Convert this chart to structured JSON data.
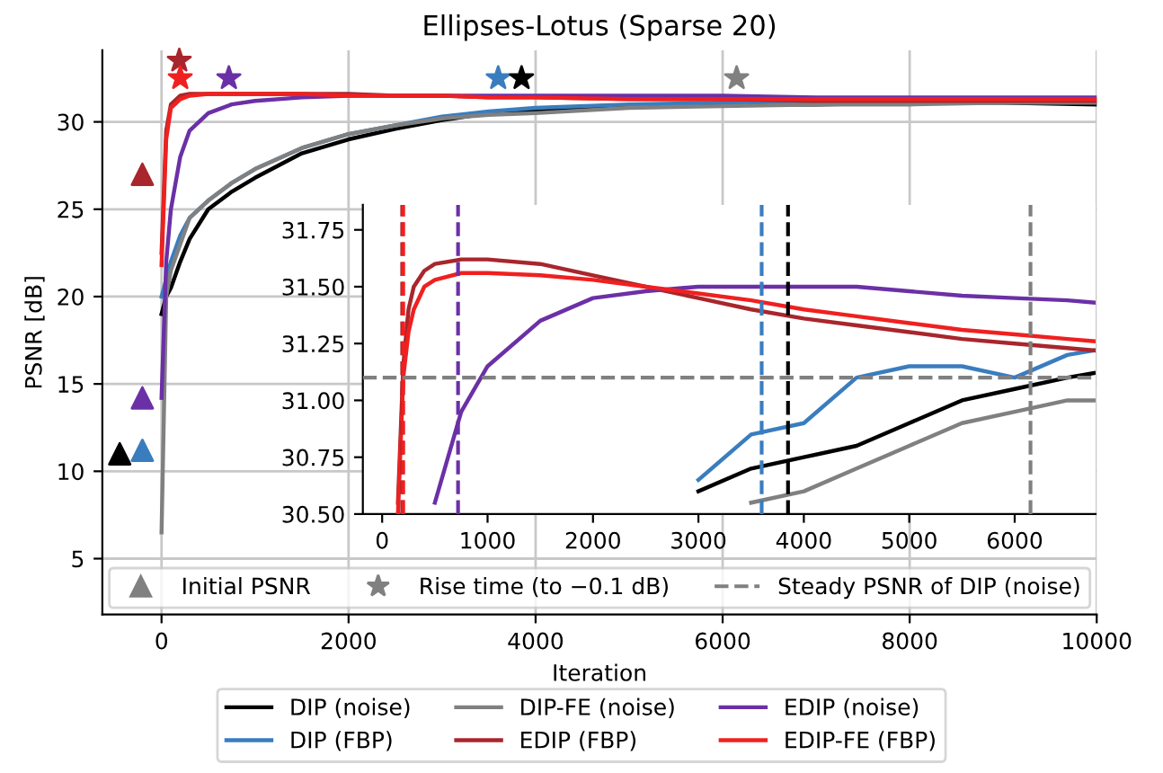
{
  "chart_data": [
    {
      "type": "line",
      "title": "Ellipses-Lotus (Sparse 20)",
      "xlabel": "Iteration",
      "ylabel": "PSNR [dB]",
      "xlim": [
        -633,
        10000
      ],
      "ylim": [
        1.8,
        34.1
      ],
      "xticks": [
        0,
        2000,
        4000,
        6000,
        8000,
        10000
      ],
      "yticks": [
        5,
        10,
        15,
        20,
        25,
        30
      ],
      "grid": true,
      "legend": "bottom",
      "annotations": [
        "Initial PSNR",
        "Rise time (to −0.1 dB)"
      ],
      "x": [
        0,
        50,
        100,
        200,
        300,
        500,
        750,
        1000,
        1500,
        2000,
        2500,
        3000,
        3500,
        4000,
        5000,
        6000,
        7000,
        8000,
        9000,
        10000
      ],
      "series": [
        {
          "name": "DIP (noise)",
          "color": "#000000",
          "values": [
            19,
            20,
            20.5,
            22,
            23.3,
            25,
            26,
            26.8,
            28.2,
            29,
            29.6,
            30.1,
            30.5,
            30.6,
            30.9,
            31,
            31,
            31.1,
            31.1,
            31
          ]
        },
        {
          "name": "DIP (FBP)",
          "color": "#3a7dbf",
          "values": [
            20,
            21,
            22,
            23.5,
            24.5,
            25.5,
            26.5,
            27.3,
            28.5,
            29.3,
            29.8,
            30.3,
            30.6,
            30.8,
            31,
            31.1,
            31.2,
            null,
            null,
            null
          ]
        },
        {
          "name": "DIP-FE (noise)",
          "color": "#808080",
          "values": [
            6.5,
            20,
            21.5,
            23,
            24.5,
            25.5,
            26.5,
            27.3,
            28.5,
            29.3,
            29.8,
            30.2,
            30.4,
            30.5,
            30.8,
            30.9,
            31,
            31,
            31.1,
            31.1
          ]
        },
        {
          "name": "EDIP (FBP)",
          "color": "#a8262c",
          "values": [
            22.5,
            29.5,
            31,
            31.5,
            31.6,
            31.6,
            31.6,
            31.6,
            31.6,
            31.6,
            31.5,
            31.5,
            31.4,
            31.4,
            31.3,
            31.3,
            31.2,
            31.2,
            31.2,
            31.2
          ]
        },
        {
          "name": "EDIP (noise)",
          "color": "#6b30a6",
          "values": [
            14.2,
            22,
            25,
            28,
            29.5,
            30.5,
            31,
            31.2,
            31.4,
            31.5,
            31.5,
            31.5,
            31.5,
            31.5,
            31.5,
            31.5,
            31.4,
            31.4,
            31.4,
            31.4
          ]
        },
        {
          "name": "EDIP-FE (FBP)",
          "color": "#f02020",
          "values": [
            21.8,
            29,
            30.8,
            31.3,
            31.5,
            31.6,
            31.6,
            31.6,
            31.6,
            31.5,
            31.5,
            31.5,
            31.4,
            31.4,
            31.3,
            31.3,
            31.3,
            31.3,
            31.3,
            31.3
          ]
        },
        {
          "type": "scatter",
          "marker": "triangle",
          "x": [
            -447,
            -205,
            -205,
            -205
          ],
          "values": [
            11,
            11.2,
            14.2,
            27
          ],
          "colors": [
            "#000000",
            "#3a7dbf",
            "#6b30a6",
            "#a8262c"
          ]
        },
        {
          "type": "scatter",
          "marker": "star",
          "x": [
            190,
            200,
            720,
            3600,
            3850,
            6150
          ],
          "values": [
            33.5,
            32.5,
            32.5,
            32.5,
            32.5,
            32.5
          ],
          "colors": [
            "#a8262c",
            "#f02020",
            "#6b30a6",
            "#3a7dbf",
            "#000000",
            "#808080"
          ]
        }
      ]
    },
    {
      "type": "line",
      "xlim": [
        -183,
        6767
      ],
      "ylim": [
        30.5,
        31.86
      ],
      "xticks": [
        0,
        1000,
        2000,
        3000,
        4000,
        5000,
        6000
      ],
      "yticks": [
        {
          "value": 30.5,
          "label": "30.50"
        },
        {
          "value": 30.75,
          "label": "30.75"
        },
        {
          "value": 31.0,
          "label": "31.00"
        },
        {
          "value": 31.25,
          "label": "31.25"
        },
        {
          "value": 31.5,
          "label": "31.50"
        },
        {
          "value": 31.75,
          "label": "31.75"
        }
      ],
      "x": [
        150,
        200,
        250,
        300,
        400,
        500,
        750,
        1000,
        1500,
        2000,
        2500,
        3000,
        3500,
        4000,
        4500,
        5000,
        5500,
        6000,
        6500,
        6750
      ],
      "ref_lines": [
        {
          "axis": "y",
          "value": 31.1,
          "label": "Steady PSNR of DIP (noise)",
          "color": "#808080",
          "line_style": "dashed"
        },
        {
          "axis": "x",
          "value": 190,
          "color": "#a8262c",
          "line_style": "dashed"
        },
        {
          "axis": "x",
          "value": 200,
          "color": "#f02020",
          "line_style": "dashed"
        },
        {
          "axis": "x",
          "value": 720,
          "color": "#6b30a6",
          "line_style": "dashed"
        },
        {
          "axis": "x",
          "value": 3600,
          "color": "#3a7dbf",
          "line_style": "dashed"
        },
        {
          "axis": "x",
          "value": 3850,
          "color": "#000000",
          "line_style": "dashed"
        },
        {
          "axis": "x",
          "value": 6150,
          "color": "#808080",
          "line_style": "dashed"
        }
      ],
      "series": [
        {
          "color": "#000000",
          "values": [
            null,
            null,
            null,
            null,
            null,
            null,
            null,
            null,
            null,
            null,
            null,
            30.6,
            30.7,
            30.75,
            30.8,
            30.9,
            31,
            31.05,
            31.1,
            31.12
          ]
        },
        {
          "color": "#3a7dbf",
          "values": [
            null,
            null,
            null,
            null,
            null,
            null,
            null,
            null,
            null,
            null,
            null,
            30.65,
            30.85,
            30.9,
            31.1,
            31.15,
            31.15,
            31.1,
            31.2,
            31.22
          ]
        },
        {
          "color": "#808080",
          "values": [
            null,
            null,
            null,
            null,
            null,
            null,
            null,
            null,
            null,
            null,
            null,
            null,
            30.55,
            30.6,
            30.7,
            30.8,
            30.9,
            30.95,
            31,
            31
          ]
        },
        {
          "color": "#a8262c",
          "values": [
            30.55,
            31.15,
            31.4,
            31.5,
            31.57,
            31.6,
            31.62,
            31.62,
            31.6,
            31.55,
            31.5,
            31.45,
            31.4,
            31.36,
            31.33,
            31.3,
            31.27,
            31.25,
            31.23,
            31.22
          ]
        },
        {
          "color": "#6b30a6",
          "values": [
            null,
            null,
            null,
            null,
            null,
            30.55,
            30.95,
            31.15,
            31.35,
            31.45,
            31.48,
            31.5,
            31.5,
            31.5,
            31.5,
            31.48,
            31.46,
            31.45,
            31.44,
            31.43
          ]
        },
        {
          "color": "#f02020",
          "values": [
            30.5,
            31.1,
            31.3,
            31.4,
            31.5,
            31.53,
            31.56,
            31.56,
            31.55,
            31.53,
            31.5,
            31.47,
            31.44,
            31.4,
            31.37,
            31.34,
            31.31,
            31.29,
            31.27,
            31.26
          ]
        }
      ]
    }
  ]
}
